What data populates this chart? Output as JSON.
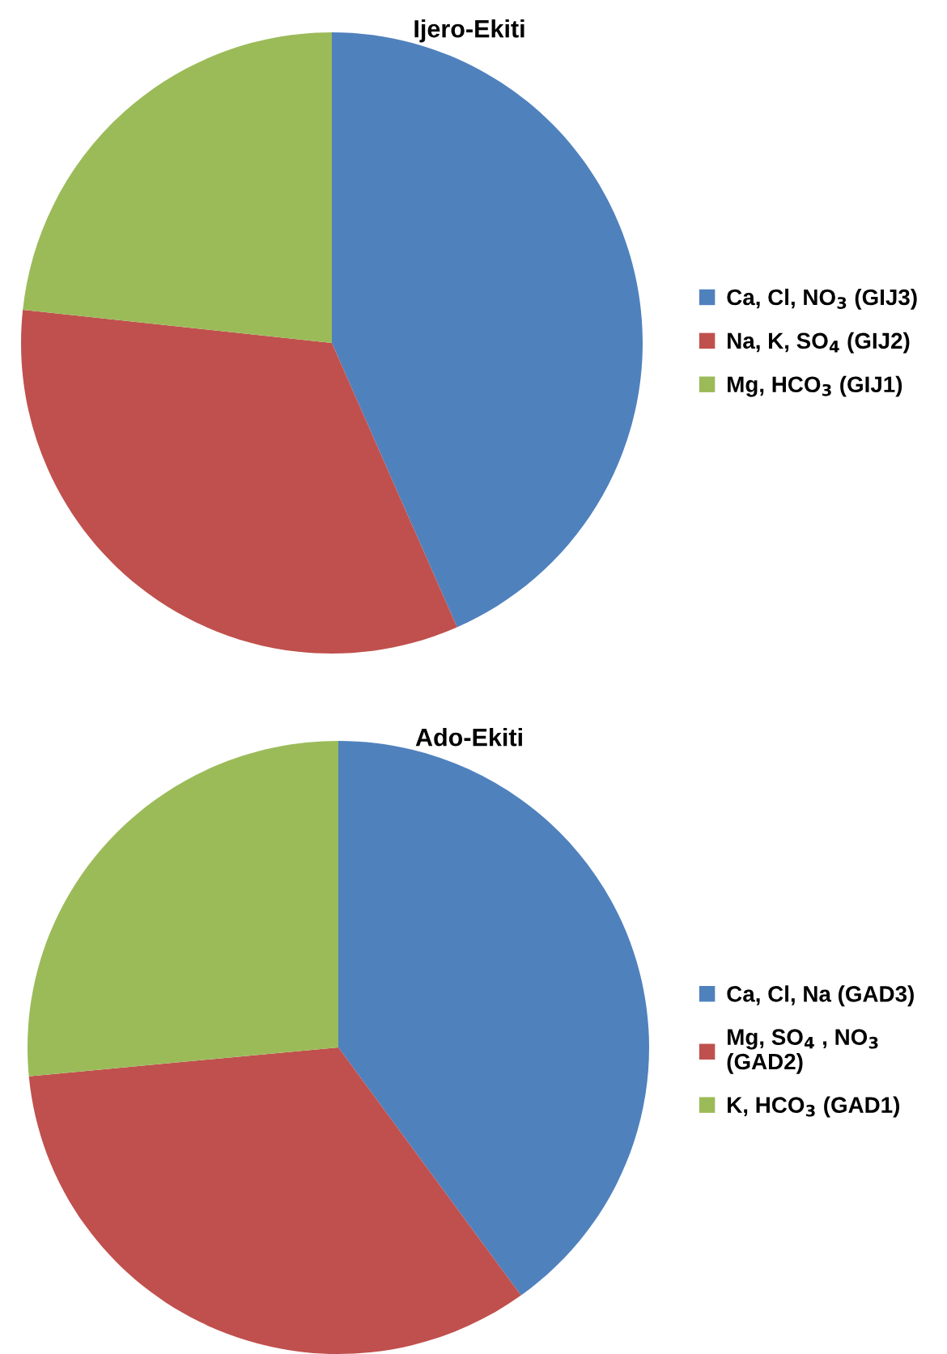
{
  "chart_data": [
    {
      "type": "pie",
      "title": "Ijero-Ekiti",
      "categories": [
        "Ca, Cl, NO$_{3}$ (GIJ3)",
        "Na, K, SO$_{4}$ (GIJ2)",
        "Mg, HCO$_{3}$ (GIJ1)"
      ],
      "values": [
        43.4,
        33.3,
        23.3
      ],
      "colors": [
        "#4f81bd",
        "#c0504d",
        "#9bbb59"
      ],
      "legend": "right"
    },
    {
      "type": "pie",
      "title": "Ado-Ekiti",
      "categories": [
        "Ca, Cl, Na (GAD3)",
        "Mg, SO$_{4}$ , NO$_{3}$\n(GAD2)",
        "K, HCO$_{3}$ (GAD1)"
      ],
      "values": [
        40.0,
        33.5,
        26.5
      ],
      "colors": [
        "#4f81bd",
        "#c0504d",
        "#9bbb59"
      ],
      "legend": "right"
    }
  ]
}
